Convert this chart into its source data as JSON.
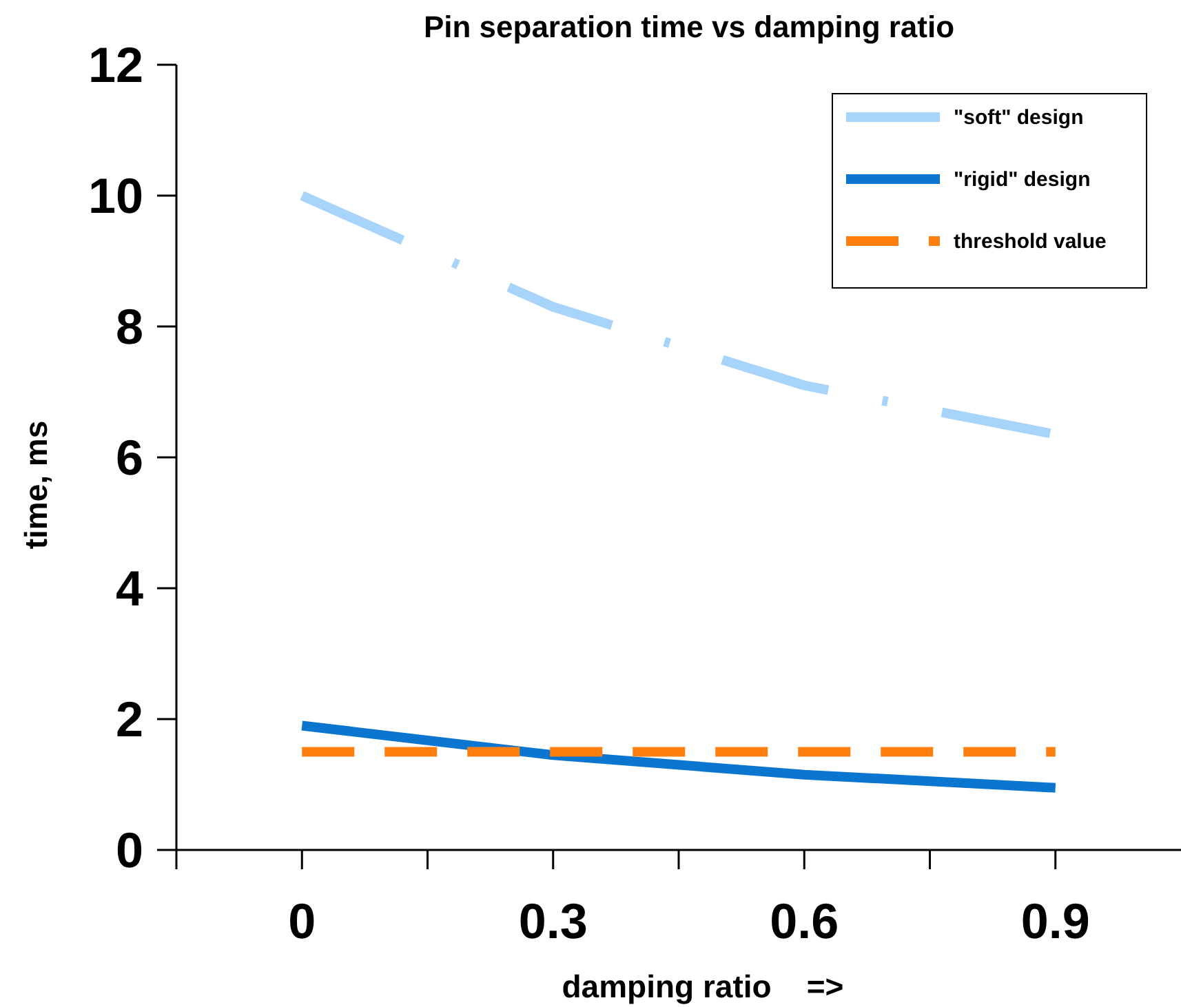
{
  "chart_data": {
    "type": "line",
    "title": "Pin separation time vs damping ratio",
    "xlabel": "damping ratio    =>",
    "ylabel": "time, ms",
    "x": [
      0,
      0.3,
      0.6,
      0.9
    ],
    "xlim": [
      -0.15,
      1.05
    ],
    "xticks": [
      {
        "value": -0.15,
        "label": null
      },
      0,
      {
        "value": 0.15,
        "label": null
      },
      0.3,
      {
        "value": 0.45,
        "label": null
      },
      0.6,
      {
        "value": 0.75,
        "label": null
      },
      0.9
    ],
    "ylim": [
      0,
      12
    ],
    "yticks": [
      0,
      2,
      4,
      6,
      8,
      10,
      12
    ],
    "series": [
      {
        "name": "\"soft\" design",
        "color": "#a6d4fa",
        "values": [
          10,
          8.3,
          7.1,
          6.35
        ],
        "line_style": "dashdot"
      },
      {
        "name": "\"rigid\" design",
        "color": "#0a76d0",
        "values": [
          1.9,
          1.45,
          1.15,
          0.95
        ],
        "line_style": "solid"
      },
      {
        "name": "threshold value",
        "color": "#ff7f0e",
        "values": [
          1.5,
          1.5,
          1.5,
          1.5
        ],
        "line_style": "dashed"
      }
    ],
    "grid": false,
    "legend": "top right",
    "marker": "none"
  }
}
